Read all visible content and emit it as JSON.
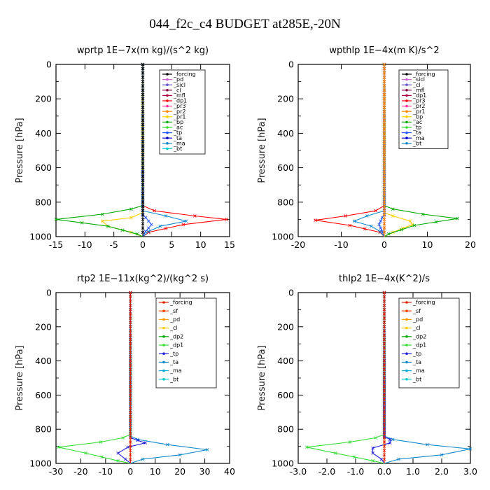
{
  "figure_title": "044_f2c_c4  BUDGET at285E,-20N",
  "y_axis_label": "Pressure [hPa]",
  "chart_data": [
    {
      "type": "line",
      "title": "wprtp  1E−7x(m kg)/(s^2 kg)",
      "xlabel": "",
      "ylabel": "Pressure [hPa]",
      "xlim": [
        -15,
        15
      ],
      "ylim": [
        1000,
        0
      ],
      "xticks": [
        "-15",
        "-10",
        "-5",
        "0",
        "5",
        "10",
        "15"
      ],
      "yticks": [
        "0",
        "200",
        "400",
        "600",
        "800",
        "1000"
      ],
      "grid": false,
      "legend": "top-right",
      "legend_entries": [
        "_forcing",
        "_pd",
        "_sicl",
        "_cl",
        "_mfl",
        "_dp1",
        "_pr3",
        "_pr2",
        "_pr1",
        "_bp",
        "_ac",
        "_tp",
        "_ta",
        "_ma",
        "_bt"
      ],
      "series": [
        {
          "name": "_dp1",
          "color": "#ff0000",
          "x": [
            0,
            0,
            2,
            9,
            14.5,
            7,
            1,
            0
          ],
          "y": [
            0,
            820,
            850,
            880,
            900,
            930,
            975,
            1000
          ]
        },
        {
          "name": "_pr1",
          "color": "#ffcc00",
          "x": [
            0,
            0,
            -2,
            -7,
            -6,
            -2,
            0
          ],
          "y": [
            0,
            860,
            890,
            910,
            940,
            975,
            1000
          ]
        },
        {
          "name": "_ac",
          "color": "#00aa00",
          "x": [
            0,
            0,
            -2,
            -7,
            -15,
            -6,
            -1,
            0
          ],
          "y": [
            0,
            820,
            840,
            870,
            900,
            940,
            985,
            1000
          ]
        },
        {
          "name": "_tp",
          "color": "#2255ff",
          "x": [
            0,
            0,
            0.5,
            1.5,
            0.5,
            0
          ],
          "y": [
            0,
            870,
            890,
            930,
            970,
            1000
          ]
        },
        {
          "name": "_ta",
          "color": "#1188cc",
          "x": [
            0,
            0,
            4,
            7.5,
            3,
            1,
            0
          ],
          "y": [
            0,
            850,
            880,
            910,
            940,
            970,
            1000
          ]
        },
        {
          "name": "_forcing",
          "color": "#000000",
          "x": [
            0,
            0
          ],
          "y": [
            0,
            1000
          ]
        }
      ]
    },
    {
      "type": "line",
      "title": "wpthlp  1E−4x(m K)/s^2",
      "xlabel": "",
      "ylabel": "Pressure [hPa]",
      "xlim": [
        -20,
        20
      ],
      "ylim": [
        1000,
        0
      ],
      "xticks": [
        "-20",
        "-10",
        "0",
        "10",
        "20"
      ],
      "yticks": [
        "0",
        "200",
        "400",
        "600",
        "800",
        "1000"
      ],
      "grid": false,
      "legend": "top-right",
      "legend_entries": [
        "_forcing",
        "_sicl",
        "_cl",
        "_mfl",
        "_dp1",
        "_pr3",
        "_pr2",
        "_pr1",
        "_bp",
        "_ac",
        "_tp",
        "_ta",
        "_ma",
        "_bt"
      ],
      "series": [
        {
          "name": "_dp1",
          "color": "#ff0000",
          "x": [
            0,
            0,
            -2,
            -9,
            -16,
            -8,
            -1,
            0
          ],
          "y": [
            0,
            820,
            850,
            880,
            905,
            935,
            975,
            1000
          ]
        },
        {
          "name": "_pr1",
          "color": "#ffcc00",
          "x": [
            0,
            0,
            2,
            6,
            6.5,
            2,
            0
          ],
          "y": [
            0,
            860,
            880,
            910,
            930,
            975,
            1000
          ]
        },
        {
          "name": "_ac",
          "color": "#00aa00",
          "x": [
            0,
            0,
            2,
            9,
            17,
            7,
            1,
            0
          ],
          "y": [
            0,
            820,
            840,
            870,
            895,
            935,
            985,
            1000
          ]
        },
        {
          "name": "_ta",
          "color": "#1188cc",
          "x": [
            0,
            0,
            -4,
            -7,
            -3,
            -1,
            0
          ],
          "y": [
            0,
            850,
            880,
            910,
            940,
            970,
            1000
          ]
        },
        {
          "name": "_tp",
          "color": "#2255ff",
          "x": [
            0,
            0,
            -0.5,
            -1.2,
            -0.5,
            0
          ],
          "y": [
            0,
            870,
            890,
            930,
            970,
            1000
          ]
        },
        {
          "name": "_forcing",
          "color": "#cc66cc",
          "x": [
            0,
            0
          ],
          "y": [
            0,
            1000
          ]
        },
        {
          "name": "_sicl",
          "color": "#6655cc",
          "x": [
            0,
            0
          ],
          "y": [
            0,
            1000
          ]
        },
        {
          "name": "_pr3",
          "color": "#ff8800",
          "x": [
            0,
            0
          ],
          "y": [
            0,
            1000
          ]
        }
      ]
    },
    {
      "type": "line",
      "title": "rtp2  1E−11x(kg^2)/(kg^2 s)",
      "xlabel": "",
      "ylabel": "Pressure [hPa]",
      "xlim": [
        -30,
        40
      ],
      "ylim": [
        1000,
        0
      ],
      "xticks": [
        "-30",
        "-20",
        "-10",
        "0",
        "10",
        "20",
        "30",
        "40"
      ],
      "yticks": [
        "0",
        "200",
        "400",
        "600",
        "800",
        "1000"
      ],
      "grid": false,
      "legend": "top-right",
      "legend_entries": [
        "_forcing",
        "_sf",
        "_pd",
        "_cl",
        "_dp2",
        "_dp1",
        "_tp",
        "_ta",
        "_ma",
        "_bt"
      ],
      "series": [
        {
          "name": "_dp1",
          "color": "#33dd33",
          "x": [
            0,
            0,
            -3,
            -12,
            -29,
            -18,
            -5,
            0
          ],
          "y": [
            0,
            830,
            850,
            875,
            905,
            940,
            985,
            1000
          ]
        },
        {
          "name": "_ta",
          "color": "#1188cc",
          "x": [
            0,
            0,
            3,
            15,
            31,
            20,
            5,
            0
          ],
          "y": [
            0,
            840,
            860,
            890,
            920,
            950,
            975,
            1000
          ]
        },
        {
          "name": "_tp",
          "color": "#2222dd",
          "x": [
            0,
            0,
            3,
            6,
            -1,
            -5,
            -2,
            0
          ],
          "y": [
            0,
            850,
            865,
            880,
            905,
            940,
            975,
            1000
          ]
        },
        {
          "name": "_forcing",
          "color": "#dd2200",
          "x": [
            0,
            0
          ],
          "y": [
            0,
            1000
          ]
        }
      ]
    },
    {
      "type": "line",
      "title": "thlp2  1E−4x(K^2)/s",
      "xlabel": "",
      "ylabel": "Pressure [hPa]",
      "xlim": [
        -3.0,
        3.0
      ],
      "ylim": [
        1000,
        0
      ],
      "xticks": [
        "-3.0",
        "-2.0",
        "-1.0",
        "0.0",
        "1.0",
        "2.0",
        "3.0"
      ],
      "yticks": [
        "0",
        "200",
        "400",
        "600",
        "800",
        "1000"
      ],
      "grid": false,
      "legend": "top-right",
      "legend_entries": [
        "_forcing",
        "_sf",
        "_pd",
        "_cl",
        "_dp2",
        "_dp1",
        "_tp",
        "_ta",
        "_ma",
        "_bt"
      ],
      "series": [
        {
          "name": "_dp1",
          "color": "#33dd33",
          "x": [
            0,
            0,
            -0.3,
            -1.2,
            -2.7,
            -1.7,
            -0.4,
            0
          ],
          "y": [
            0,
            830,
            850,
            875,
            905,
            940,
            985,
            1000
          ]
        },
        {
          "name": "_ta",
          "color": "#1188cc",
          "x": [
            0,
            0,
            0.3,
            1.5,
            3.0,
            2.0,
            0.5,
            0
          ],
          "y": [
            0,
            840,
            860,
            890,
            915,
            950,
            975,
            1000
          ]
        },
        {
          "name": "_tp",
          "color": "#2222dd",
          "x": [
            0,
            0,
            0.2,
            0.2,
            -0.4,
            -0.4,
            -0.1,
            0
          ],
          "y": [
            0,
            845,
            860,
            880,
            910,
            940,
            975,
            1000
          ]
        },
        {
          "name": "_forcing",
          "color": "#dd2200",
          "x": [
            0,
            0
          ],
          "y": [
            0,
            1000
          ]
        }
      ]
    }
  ]
}
